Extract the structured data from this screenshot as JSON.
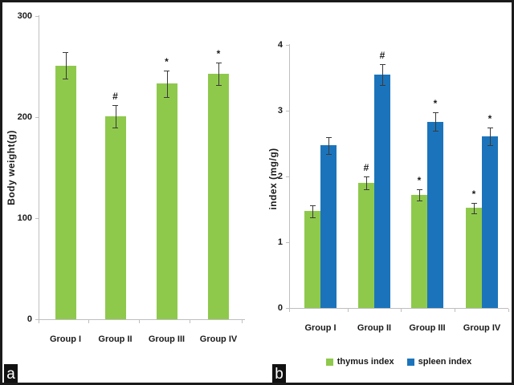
{
  "figure": {
    "panel_a_label": "a",
    "panel_b_label": "b"
  },
  "colors": {
    "green": "#8FC94C",
    "blue": "#1B74BB",
    "axis": "#BFBFBF",
    "error": "#3A3A3A",
    "text": "#1A1A1A"
  },
  "chart_data": [
    {
      "id": "body_weight",
      "type": "bar",
      "title": "",
      "xlabel": "",
      "ylabel": "Body weight(g)",
      "categories": [
        "Group I",
        "Group II",
        "Group III",
        "Group IV"
      ],
      "series": [
        {
          "name": "body weight",
          "color_key": "green",
          "values": [
            251,
            201,
            233,
            243
          ],
          "errors": [
            13,
            11,
            13,
            11
          ],
          "annotations": [
            "",
            "#",
            "*",
            "*"
          ]
        }
      ],
      "ylim": [
        0,
        300
      ],
      "yticks": [
        0,
        100,
        200,
        300
      ],
      "grid": false,
      "legend": null
    },
    {
      "id": "organ_index",
      "type": "bar",
      "title": "",
      "xlabel": "",
      "ylabel": "index (mg/g)",
      "categories": [
        "Group I",
        "Group II",
        "Group III",
        "Group IV"
      ],
      "series": [
        {
          "name": "thymus index",
          "color_key": "green",
          "values": [
            1.47,
            1.9,
            1.72,
            1.52
          ],
          "errors": [
            0.09,
            0.1,
            0.09,
            0.08
          ],
          "annotations": [
            "",
            "#",
            "*",
            "*"
          ]
        },
        {
          "name": "spleen index",
          "color_key": "blue",
          "values": [
            2.47,
            3.55,
            2.83,
            2.61
          ],
          "errors": [
            0.13,
            0.16,
            0.14,
            0.13
          ],
          "annotations": [
            "",
            "#",
            "*",
            "*"
          ]
        }
      ],
      "ylim": [
        0,
        4
      ],
      "yticks": [
        0,
        1,
        2,
        3,
        4
      ],
      "grid": false,
      "legend": {
        "position": "bottom",
        "entries": [
          "thymus index",
          "spleen index"
        ]
      }
    }
  ]
}
